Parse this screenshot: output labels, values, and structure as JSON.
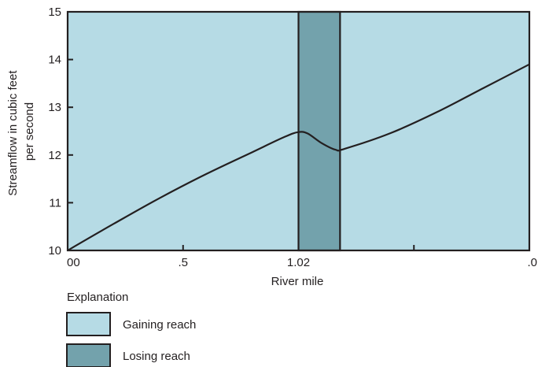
{
  "chart_data": {
    "type": "area",
    "ylabel_lines": [
      "Streamflow in cubic feet",
      "per second"
    ],
    "xlabel": "River mile",
    "ylim": [
      10,
      15
    ],
    "yticks": [
      10,
      11,
      12,
      13,
      14,
      15
    ],
    "xlim": [
      0,
      1
    ],
    "xticks": [
      {
        "value": 0.0,
        "label": "00"
      },
      {
        "value": 0.25,
        "label": ".5"
      },
      {
        "value": 0.5,
        "label": "1.02"
      },
      {
        "value": 0.75,
        "label": ""
      },
      {
        "value": 1.0,
        "label": ".0"
      }
    ],
    "losing_reach_x": [
      0.5,
      0.59
    ],
    "series": [
      {
        "x": [
          0.0,
          0.1,
          0.2,
          0.3,
          0.4,
          0.47,
          0.5,
          0.52,
          0.55,
          0.58,
          0.6,
          0.7,
          0.8,
          0.9,
          1.0
        ],
        "y": [
          10.0,
          10.56,
          11.1,
          11.6,
          12.06,
          12.38,
          12.48,
          12.45,
          12.25,
          12.11,
          12.13,
          12.46,
          12.9,
          13.4,
          13.9
        ]
      }
    ],
    "legend": {
      "title": "Explanation",
      "items": [
        {
          "label": "Gaining reach",
          "color": "#b6dbe5"
        },
        {
          "label": "Losing reach",
          "color": "#73a2ac"
        }
      ]
    },
    "colors": {
      "gaining": "#b6dbe5",
      "losing": "#73a2ac",
      "line": "#231f20"
    }
  }
}
